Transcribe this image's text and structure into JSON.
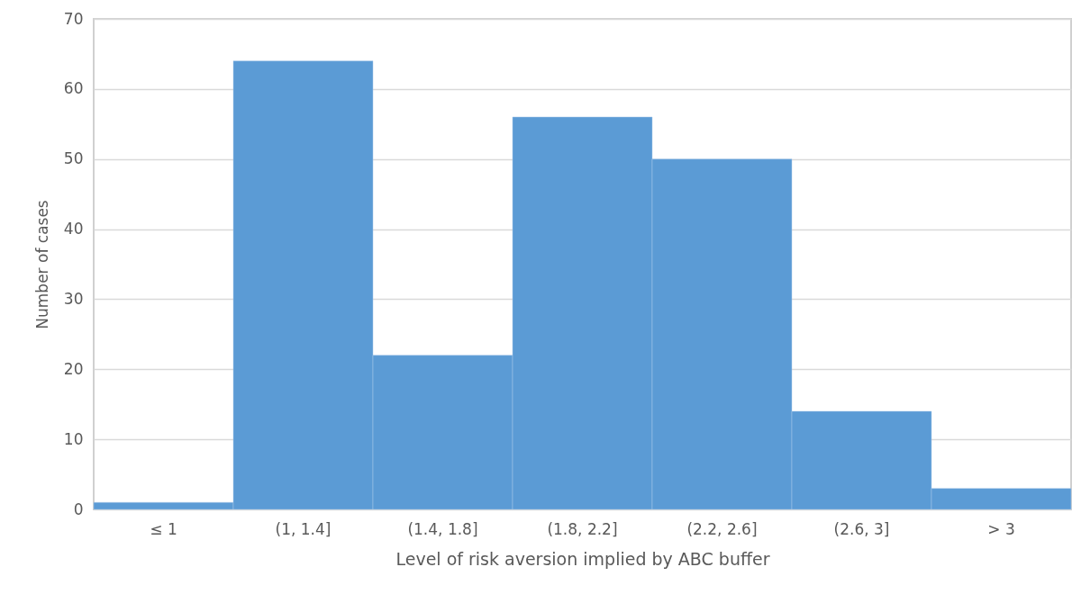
{
  "chart_data": {
    "type": "bar",
    "xlabel": "Level of risk aversion implied by ABC buffer",
    "ylabel": "Number of cases",
    "categories": [
      "≤ 1",
      "(1, 1.4]",
      "(1.4, 1.8]",
      "(1.8, 2.2]",
      "(2.2, 2.6]",
      "(2.6, 3]",
      "> 3"
    ],
    "values": [
      1,
      64,
      22,
      56,
      50,
      14,
      3
    ],
    "color": "#5b9bd5",
    "ylim": [
      0,
      70
    ],
    "yticks": [
      0,
      10,
      20,
      30,
      40,
      50,
      60,
      70
    ],
    "grid": "y"
  }
}
